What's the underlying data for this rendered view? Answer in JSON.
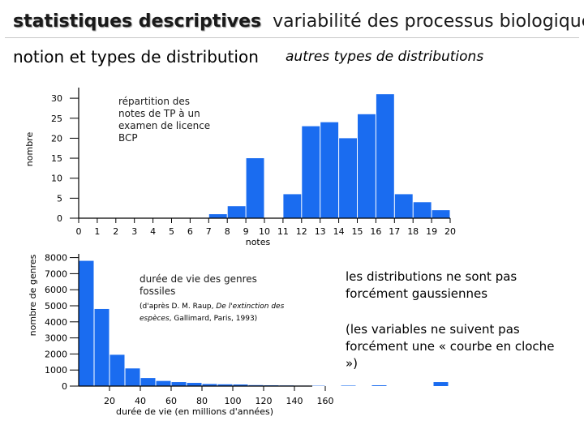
{
  "header": {
    "title_bold": "statistiques descriptives",
    "title_rest": "variabilité des processus biologiques",
    "subtitle_left": "notion et types de distribution",
    "subtitle_right": "autres types de distributions"
  },
  "side_text": {
    "line1": "les distributions ne sont pas forcément gaussiennes",
    "line2": "(les variables ne suivent pas forcément une « courbe en cloche »)"
  },
  "chart_data": [
    {
      "type": "bar",
      "annotation": [
        "répartition des",
        "notes de TP  à un",
        "examen de licence",
        "BCP"
      ],
      "xlabel": "notes",
      "ylabel": "nombre",
      "xticks": [
        0,
        1,
        2,
        3,
        4,
        5,
        6,
        7,
        8,
        9,
        10,
        11,
        12,
        13,
        14,
        15,
        16,
        17,
        18,
        19,
        20
      ],
      "yticks": [
        0,
        5,
        10,
        15,
        20,
        25,
        30
      ],
      "ylim": [
        0,
        32
      ],
      "x": [
        7,
        8,
        9,
        11,
        12,
        13,
        14,
        15,
        16,
        17,
        18,
        19
      ],
      "values": [
        1,
        3,
        15,
        6,
        23,
        24,
        20,
        26,
        31,
        6,
        4,
        2
      ],
      "color": "#1a6cf0"
    },
    {
      "type": "bar",
      "annotation": [
        "durée de vie des genres",
        "fossiles"
      ],
      "source_plain_1": "(d'après D. M. Raup, ",
      "source_italic_1": "De l'extinction des",
      "source_italic_2": "espèces",
      "source_plain_2": ", Gallimard, Paris, 1993)",
      "xlabel": "durée de vie (en millions d'années)",
      "ylabel": "nombre de genres",
      "xticks": [
        20,
        40,
        60,
        80,
        100,
        120,
        140,
        160
      ],
      "yticks": [
        0,
        1000,
        2000,
        3000,
        4000,
        5000,
        6000,
        7000,
        8000
      ],
      "ylim": [
        0,
        8000
      ],
      "x_start": 0,
      "bin_width": 10,
      "values": [
        7800,
        4800,
        1950,
        1100,
        500,
        320,
        250,
        200,
        130,
        110,
        100,
        60,
        50,
        40,
        30,
        20,
        0,
        30,
        0,
        50,
        0,
        0,
        0,
        250
      ],
      "color": "#1a6cf0"
    }
  ]
}
